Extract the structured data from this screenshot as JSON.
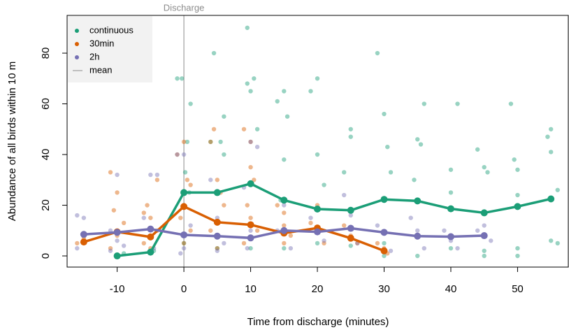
{
  "chart_data": {
    "type": "line",
    "x_label": "Time from discharge (minutes)",
    "y_label": "Abundance of all birds within 10 m",
    "xlim": [
      -17.5,
      57.6
    ],
    "ylim": [
      -4.4,
      94.9
    ],
    "xticks": [
      -10,
      0,
      10,
      20,
      30,
      40,
      50
    ],
    "yticks": [
      0,
      20,
      40,
      60,
      80
    ],
    "annotation": {
      "text": "Discharge",
      "x": 0
    },
    "legend": {
      "position": "top-left",
      "mean_label": "mean",
      "mean_color": "#8c8c8c"
    },
    "series": [
      {
        "name": "continuous",
        "color": "#1b9e77",
        "x": [
          -10,
          -5,
          0,
          5,
          10,
          15,
          20,
          25,
          30,
          35,
          40,
          45,
          50,
          55
        ],
        "values": [
          0,
          1.5,
          25,
          25,
          28.5,
          22,
          18.5,
          18,
          22.3,
          21.7,
          18.6,
          17,
          19.5,
          22.5
        ],
        "points_x": [
          -10,
          -9,
          -5,
          -4.5,
          -1,
          -0.3,
          0.5,
          1,
          0.2,
          0.8,
          4.5,
          5.5,
          6,
          4,
          6,
          9.5,
          9.5,
          10.5,
          10,
          11,
          14,
          15,
          15.5,
          15,
          14.5,
          19,
          20,
          20,
          21,
          24,
          25,
          25,
          29,
          30,
          30.5,
          31,
          35,
          36,
          35.5,
          34.5,
          40,
          41,
          40,
          44,
          45,
          45.5,
          49,
          49.5,
          50,
          50,
          54.5,
          55,
          55,
          56,
          55,
          56,
          50,
          45,
          40,
          30,
          20,
          10,
          0,
          5,
          15,
          25,
          35,
          50,
          45,
          30
        ],
        "points_values": [
          0,
          1,
          1,
          2,
          70,
          70,
          45,
          60,
          33,
          25,
          80,
          45,
          55,
          45,
          40,
          90,
          68,
          70,
          65,
          50,
          61,
          65,
          55,
          38,
          22,
          65,
          70,
          40,
          28,
          33,
          47,
          50,
          80,
          56,
          43,
          33,
          46,
          60,
          44,
          30,
          34,
          60,
          25,
          42,
          35,
          33,
          60,
          38,
          34,
          24,
          47,
          50,
          41,
          26,
          6,
          5,
          3,
          2,
          3,
          5,
          5,
          3,
          5,
          3,
          3,
          4,
          0,
          0,
          0,
          0
        ]
      },
      {
        "name": "30min",
        "color": "#d95f02",
        "x": [
          -15,
          -10,
          -5,
          0,
          5,
          10,
          15,
          20,
          25,
          30
        ],
        "values": [
          5.5,
          9.5,
          7.5,
          19.5,
          13.3,
          12.3,
          9,
          11,
          7,
          2
        ],
        "points_x": [
          -16,
          -15,
          -11,
          -10,
          -10.5,
          -9,
          -10,
          -11,
          -6,
          -5,
          -4,
          -5.5,
          -4,
          -6,
          -5,
          -1,
          0,
          0.5,
          1,
          0,
          -0.5,
          1,
          0,
          4,
          4.5,
          5,
          5.5,
          6,
          4,
          5,
          9,
          10,
          10,
          10.5,
          9.5,
          10,
          11,
          9,
          14,
          15,
          15,
          16,
          15,
          19,
          20,
          20,
          21,
          24,
          25,
          26,
          29,
          30,
          30.5
        ],
        "points_values": [
          5,
          7,
          33,
          25,
          18,
          13,
          8,
          3,
          17,
          15,
          30,
          20,
          10,
          5,
          3,
          40,
          45,
          30,
          28,
          20,
          15,
          10,
          5,
          45,
          50,
          30,
          25,
          20,
          10,
          3,
          50,
          45,
          35,
          30,
          20,
          15,
          10,
          5,
          20,
          17,
          12,
          8,
          5,
          13,
          20,
          10,
          5,
          12,
          8,
          5,
          5,
          3,
          1
        ]
      },
      {
        "name": "2h",
        "color": "#7570b3",
        "x": [
          -15,
          -10,
          -5,
          0,
          5,
          10,
          15,
          20,
          25,
          30,
          35,
          40,
          45
        ],
        "values": [
          8.5,
          9.3,
          10.6,
          8.3,
          7.8,
          7.1,
          10,
          9.5,
          10.9,
          9.3,
          7.8,
          7.6,
          8
        ],
        "points_x": [
          -16,
          -15,
          -16,
          -10,
          -11,
          -10,
          -9,
          -11,
          -5,
          -4,
          -6,
          -5,
          -4.5,
          -1,
          0,
          1,
          0,
          -0.5,
          4,
          5,
          6,
          5,
          9,
          10,
          11,
          10,
          9.5,
          15,
          14,
          16,
          19,
          20,
          21,
          24,
          25,
          26,
          29,
          30,
          31,
          34,
          35,
          36,
          39,
          40,
          41,
          44,
          45,
          46
        ],
        "points_values": [
          16,
          15,
          3,
          32,
          10,
          6,
          4,
          2,
          32,
          32,
          15,
          7,
          3,
          40,
          40,
          12,
          3,
          1,
          30,
          15,
          5,
          2,
          27,
          45,
          43,
          10,
          3,
          20,
          10,
          3,
          15,
          10,
          6,
          24,
          16,
          5,
          12,
          9,
          2,
          15,
          10,
          3,
          10,
          6,
          3,
          10,
          12,
          6
        ]
      }
    ]
  }
}
